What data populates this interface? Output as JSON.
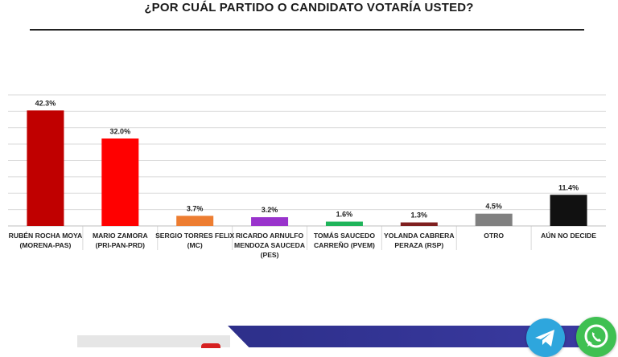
{
  "chart_data": {
    "type": "bar",
    "title": "¿POR CUÁL PARTIDO O CANDIDATO VOTARÍA USTED?",
    "categories": [
      [
        "RUBÉN ROCHA MOYA",
        "(MORENA-PAS)"
      ],
      [
        "MARIO ZAMORA",
        "(PRI-PAN-PRD)"
      ],
      [
        "SERGIO TORRES FELIX",
        "(MC)"
      ],
      [
        "RICARDO ARNULFO",
        "MENDOZA SAUCEDA",
        "(PES)"
      ],
      [
        "TOMÁS SAUCEDO",
        "CARREÑO (PVEM)"
      ],
      [
        "YOLANDA CABRERA",
        "PERAZA (RSP)"
      ],
      [
        "OTRO"
      ],
      [
        "AÚN NO DECIDE"
      ]
    ],
    "values": [
      42.3,
      32.0,
      3.7,
      3.2,
      1.6,
      1.3,
      4.5,
      11.4
    ],
    "data_labels": [
      "42.3%",
      "32.0%",
      "3.7%",
      "3.2%",
      "1.6%",
      "1.3%",
      "4.5%",
      "11.4%"
    ],
    "colors": [
      "#c00000",
      "#ff0000",
      "#ed7d31",
      "#9933cc",
      "#1fb45a",
      "#7f1f1f",
      "#808080",
      "#111111"
    ],
    "ylim": [
      0,
      48
    ],
    "grid": true,
    "legend": "none"
  },
  "icons": [
    "telegram-icon",
    "whatsapp-icon"
  ]
}
